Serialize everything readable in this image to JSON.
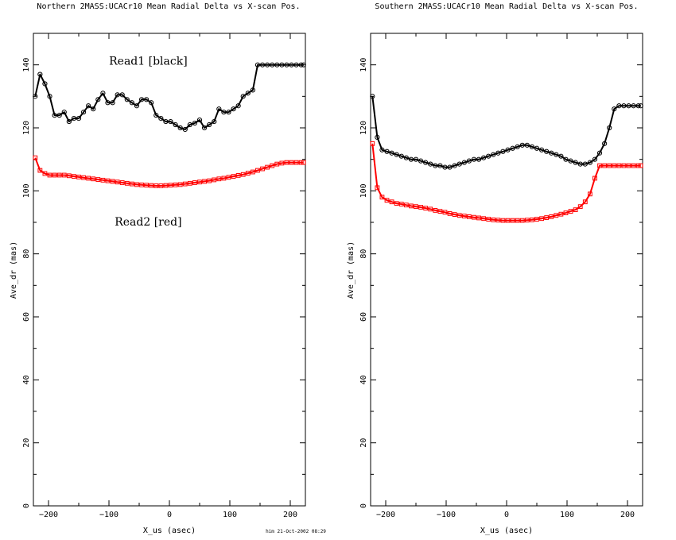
{
  "stamp": "him 21-Oct-2002 08:29",
  "chart_data": [
    {
      "type": "line",
      "title": "Northern 2MASS:UCACr10 Mean Radial Delta vs X-scan Pos.",
      "xlabel": "X_us (asec)",
      "ylabel": "Ave_dr (mas)",
      "xlim": [
        -225,
        225
      ],
      "ylim": [
        0,
        150
      ],
      "xticks": [
        -200,
        -100,
        0,
        100,
        200
      ],
      "yticks": [
        0,
        20,
        40,
        60,
        80,
        100,
        120,
        140
      ],
      "grid": false,
      "annotations": [
        {
          "text": "Read1 [black]",
          "x": -35,
          "y": 140
        },
        {
          "text": "Read2 [red]",
          "x": -35,
          "y": 89
        }
      ],
      "x": [
        -222,
        -214,
        -206,
        -198,
        -190,
        -182,
        -174,
        -166,
        -158,
        -150,
        -142,
        -134,
        -126,
        -118,
        -110,
        -102,
        -94,
        -86,
        -78,
        -70,
        -62,
        -54,
        -46,
        -38,
        -30,
        -22,
        -14,
        -6,
        2,
        10,
        18,
        26,
        34,
        42,
        50,
        58,
        66,
        74,
        82,
        90,
        98,
        106,
        114,
        122,
        130,
        138,
        146,
        154,
        162,
        170,
        178,
        186,
        194,
        202,
        210,
        218,
        222
      ],
      "series": [
        {
          "color": "#000000",
          "marker": "circle",
          "values": [
            130,
            137,
            134,
            130,
            124,
            124,
            125,
            122,
            123,
            123,
            125,
            127,
            126,
            129,
            131,
            128,
            128,
            130.5,
            130.5,
            129,
            128,
            127,
            129,
            129,
            128,
            124,
            123,
            122,
            122,
            121,
            120,
            119.5,
            121,
            121.5,
            122.5,
            120,
            121,
            122,
            126,
            125,
            125,
            126,
            127,
            130,
            131,
            132,
            140,
            140,
            140,
            140,
            140,
            140,
            140,
            140,
            140,
            140,
            140
          ]
        },
        {
          "color": "#ff0000",
          "marker": "square",
          "values": [
            110.5,
            106.5,
            105.5,
            105,
            105,
            105,
            105,
            104.8,
            104.6,
            104.4,
            104.2,
            104,
            103.8,
            103.6,
            103.4,
            103.2,
            103,
            102.8,
            102.6,
            102.4,
            102.2,
            102,
            101.9,
            101.8,
            101.7,
            101.6,
            101.6,
            101.7,
            101.8,
            101.9,
            102,
            102.2,
            102.4,
            102.6,
            102.8,
            103,
            103.2,
            103.5,
            103.8,
            104,
            104.3,
            104.6,
            104.9,
            105.2,
            105.6,
            106,
            106.5,
            107,
            107.5,
            108,
            108.5,
            108.8,
            109,
            109,
            109,
            109,
            109
          ]
        }
      ]
    },
    {
      "type": "line",
      "title": "Southern 2MASS:UCACr10 Mean Radial Delta vs X-scan Pos.",
      "xlabel": "X_us (asec)",
      "ylabel": "Ave_dr (mas)",
      "xlim": [
        -225,
        225
      ],
      "ylim": [
        0,
        150
      ],
      "xticks": [
        -200,
        -100,
        0,
        100,
        200
      ],
      "yticks": [
        0,
        20,
        40,
        60,
        80,
        100,
        120,
        140
      ],
      "grid": false,
      "annotations": [],
      "x": [
        -222,
        -214,
        -206,
        -198,
        -190,
        -182,
        -174,
        -166,
        -158,
        -150,
        -142,
        -134,
        -126,
        -118,
        -110,
        -102,
        -94,
        -86,
        -78,
        -70,
        -62,
        -54,
        -46,
        -38,
        -30,
        -22,
        -14,
        -6,
        2,
        10,
        18,
        26,
        34,
        42,
        50,
        58,
        66,
        74,
        82,
        90,
        98,
        106,
        114,
        122,
        130,
        138,
        146,
        154,
        162,
        170,
        178,
        186,
        194,
        202,
        210,
        218,
        222
      ],
      "series": [
        {
          "color": "#000000",
          "marker": "circle",
          "values": [
            130,
            117,
            113,
            112.5,
            112,
            111.5,
            111,
            110.5,
            110,
            110,
            109.5,
            109,
            108.5,
            108,
            108,
            107.5,
            107.5,
            108,
            108.5,
            109,
            109.5,
            110,
            110,
            110.5,
            111,
            111.5,
            112,
            112.5,
            113,
            113.5,
            114,
            114.5,
            114.5,
            114,
            113.5,
            113,
            112.5,
            112,
            111.5,
            111,
            110,
            109.5,
            109,
            108.5,
            108.5,
            109,
            110,
            112,
            115,
            120,
            126,
            127,
            127,
            127,
            127,
            127,
            127
          ]
        },
        {
          "color": "#ff0000",
          "marker": "square",
          "values": [
            115,
            101,
            98,
            97,
            96.5,
            96,
            95.8,
            95.5,
            95.2,
            95,
            94.8,
            94.5,
            94.2,
            93.8,
            93.5,
            93.2,
            92.8,
            92.5,
            92.2,
            92,
            91.8,
            91.6,
            91.4,
            91.2,
            91,
            90.8,
            90.7,
            90.6,
            90.6,
            90.6,
            90.6,
            90.6,
            90.7,
            90.8,
            91,
            91.2,
            91.5,
            91.8,
            92.2,
            92.6,
            93,
            93.5,
            94,
            95,
            96.5,
            99,
            104,
            108,
            108,
            108,
            108,
            108,
            108,
            108,
            108,
            108,
            108
          ]
        }
      ]
    }
  ]
}
